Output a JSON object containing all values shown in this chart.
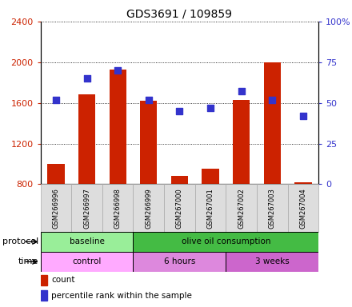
{
  "title": "GDS3691 / 109859",
  "samples": [
    "GSM266996",
    "GSM266997",
    "GSM266998",
    "GSM266999",
    "GSM267000",
    "GSM267001",
    "GSM267002",
    "GSM267003",
    "GSM267004"
  ],
  "count_values": [
    1000,
    1680,
    1930,
    1620,
    880,
    950,
    1630,
    2000,
    820
  ],
  "percentile_values": [
    52,
    65,
    70,
    52,
    45,
    47,
    57,
    52,
    42
  ],
  "ylim_left": [
    800,
    2400
  ],
  "ylim_right": [
    0,
    100
  ],
  "yticks_left": [
    800,
    1200,
    1600,
    2000,
    2400
  ],
  "yticks_right": [
    0,
    25,
    50,
    75,
    100
  ],
  "bar_color": "#cc2200",
  "dot_color": "#3333cc",
  "bar_width": 0.55,
  "protocol_groups": [
    {
      "label": "baseline",
      "start": 0,
      "end": 3,
      "color": "#99ee99"
    },
    {
      "label": "olive oil consumption",
      "start": 3,
      "end": 9,
      "color": "#44bb44"
    }
  ],
  "time_groups": [
    {
      "label": "control",
      "start": 0,
      "end": 3,
      "color": "#ffaaff"
    },
    {
      "label": "6 hours",
      "start": 3,
      "end": 6,
      "color": "#dd88dd"
    },
    {
      "label": "3 weeks",
      "start": 6,
      "end": 9,
      "color": "#cc66cc"
    }
  ],
  "protocol_label": "protocol",
  "time_label": "time",
  "legend_count_label": "count",
  "legend_pct_label": "percentile rank within the sample",
  "title_fontsize": 10,
  "tick_fontsize": 7,
  "dot_size": 30
}
